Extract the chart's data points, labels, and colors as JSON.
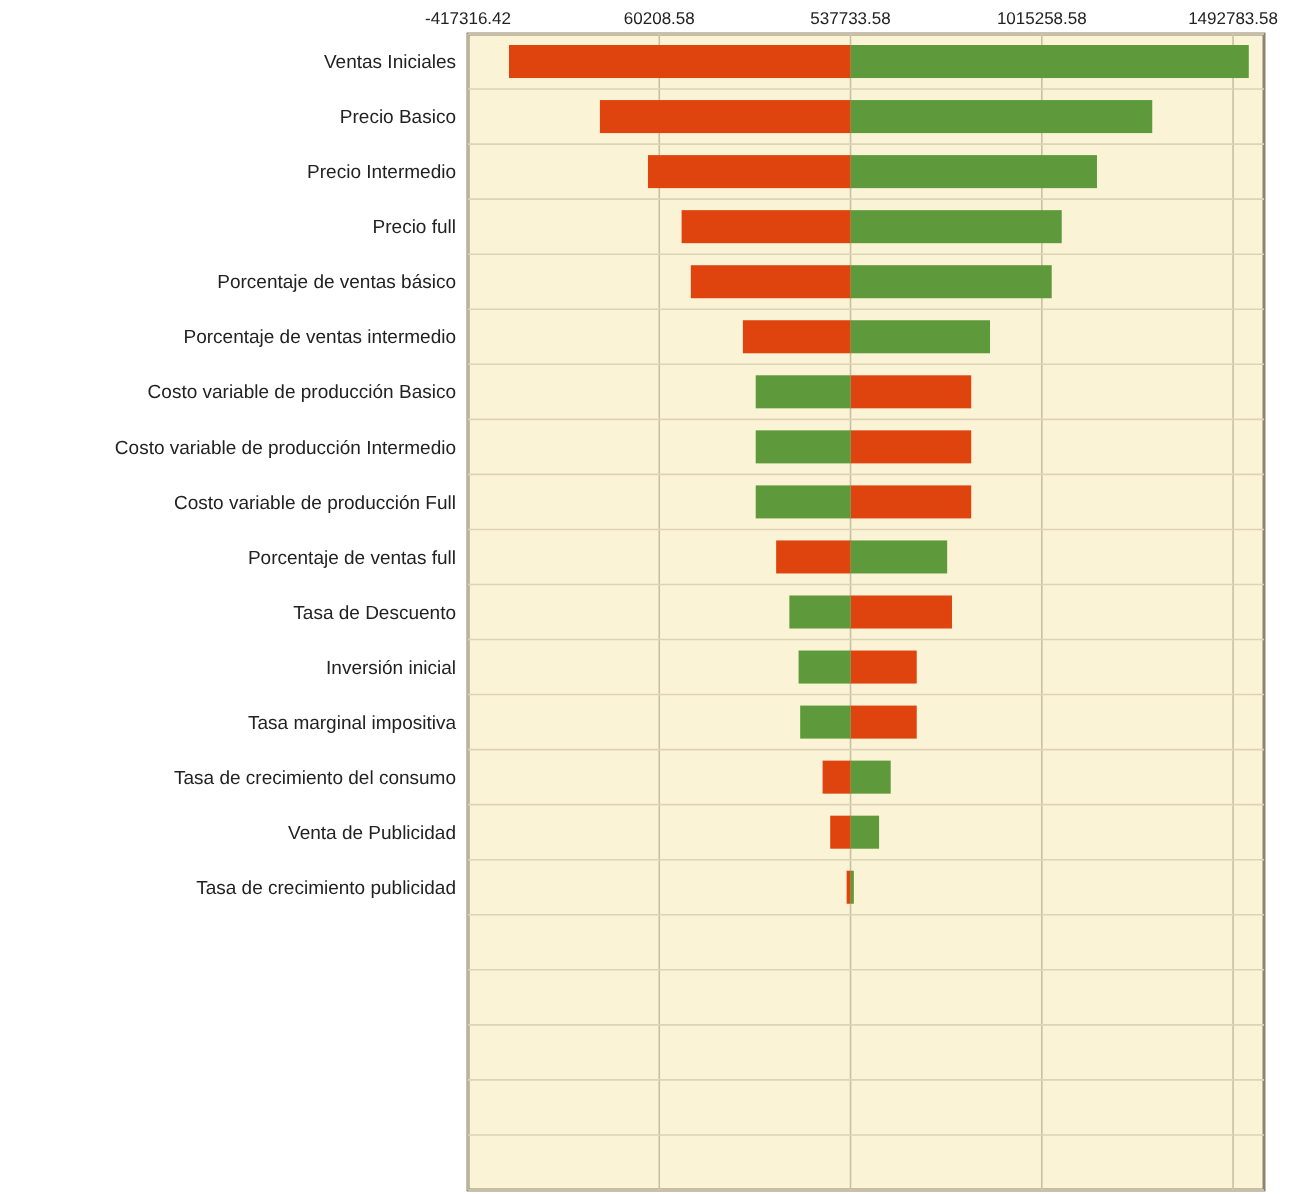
{
  "chart_data": {
    "type": "bar",
    "orientation": "horizontal",
    "grid": true,
    "categories": [
      "Ventas Iniciales",
      "Precio Basico",
      "Precio Intermedio",
      "Precio full",
      "Porcentaje de ventas básico",
      "Porcentaje de ventas intermedio",
      "Costo variable de producción Basico",
      "Costo variable de producción Intermedio",
      "Costo variable de producción Full",
      "Porcentaje de ventas full",
      "Tasa de Descuento",
      "Inversión inicial",
      "Tasa marginal impositiva",
      "Tasa de crecimiento del consumo",
      "Venta de Publicidad",
      "Tasa de crecimiento publicidad",
      null,
      null,
      null,
      null,
      null
    ],
    "xlim": [
      -417316.42,
      1570000
    ],
    "xticks": [
      -417316.42,
      60208.58,
      537733.58,
      1015258.58,
      1492783.58
    ],
    "series": [
      {
        "color": "#e0440e",
        "base": [
          -315000,
          -88000,
          32000,
          116000,
          139000,
          269000,
          538000,
          538000,
          538000,
          352000,
          538000,
          538000,
          538000,
          468000,
          487000,
          528000,
          null,
          null,
          null,
          null,
          null
        ],
        "values": [
          853000,
          626000,
          506000,
          422000,
          399000,
          269000,
          301000,
          301000,
          301000,
          186000,
          253000,
          165000,
          165000,
          70000,
          51000,
          10000,
          null,
          null,
          null,
          null,
          null
        ]
      },
      {
        "color": "#5e9a3c",
        "base": [
          538000,
          538000,
          538000,
          538000,
          538000,
          538000,
          301000,
          301000,
          301000,
          538000,
          385000,
          408000,
          412000,
          538000,
          538000,
          538000,
          null,
          null,
          null,
          null,
          null
        ],
        "values": [
          994000,
          753000,
          615000,
          527000,
          502000,
          348000,
          237000,
          237000,
          237000,
          241000,
          153000,
          130000,
          126000,
          100000,
          71000,
          8000,
          null,
          null,
          null,
          null,
          null
        ]
      }
    ]
  }
}
